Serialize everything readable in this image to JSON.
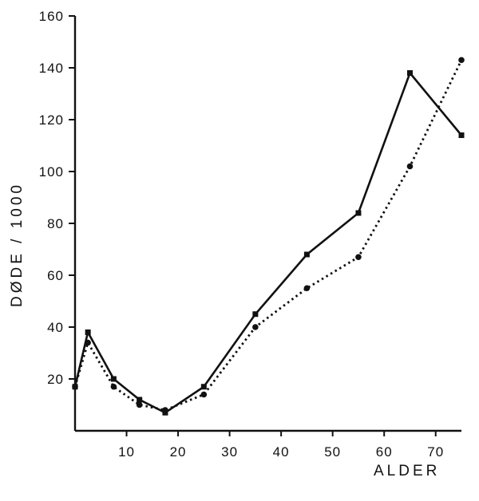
{
  "chart_data": {
    "type": "line",
    "xlabel": "ALDER",
    "ylabel": "DØDE / 1000",
    "xlim": [
      0,
      75
    ],
    "ylim": [
      0,
      160
    ],
    "x_ticks": [
      10,
      20,
      30,
      40,
      50,
      60,
      70
    ],
    "y_ticks": [
      20,
      40,
      60,
      80,
      100,
      120,
      140,
      160
    ],
    "grid": false,
    "series": [
      {
        "style": "solid",
        "marker": "square",
        "color": "#111111",
        "points": [
          [
            0,
            17
          ],
          [
            2.5,
            38
          ],
          [
            7.5,
            20
          ],
          [
            12.5,
            12
          ],
          [
            17.5,
            7
          ],
          [
            25,
            17
          ],
          [
            35,
            45
          ],
          [
            45,
            68
          ],
          [
            55,
            84
          ],
          [
            65,
            138
          ],
          [
            75,
            114
          ]
        ]
      },
      {
        "style": "dotted",
        "marker": "circle",
        "color": "#111111",
        "points": [
          [
            0,
            17
          ],
          [
            2.5,
            34
          ],
          [
            7.5,
            17
          ],
          [
            12.5,
            10
          ],
          [
            17.5,
            8
          ],
          [
            25,
            14
          ],
          [
            35,
            40
          ],
          [
            45,
            55
          ],
          [
            55,
            67
          ],
          [
            65,
            102
          ],
          [
            75,
            143
          ]
        ]
      }
    ]
  }
}
